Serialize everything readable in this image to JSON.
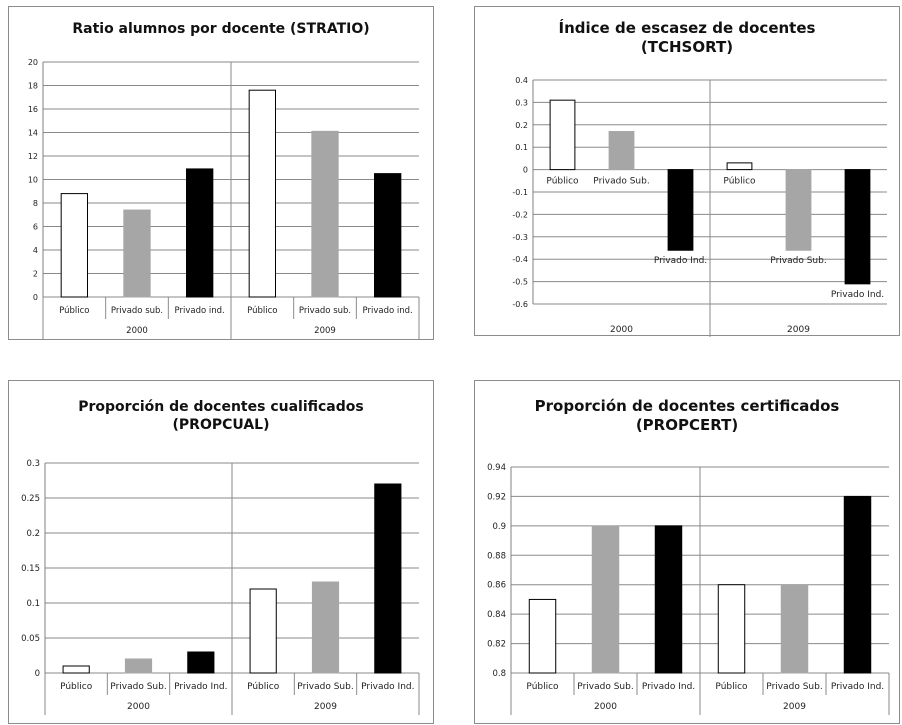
{
  "charts": [
    {
      "title_lines": [
        "Ratio alumnos por docente (STRATIO)"
      ],
      "chart_data": {
        "type": "bar",
        "title": "Ratio alumnos por docente (STRATIO)",
        "xlabel": "",
        "ylabel": "",
        "ylim": [
          0,
          20
        ],
        "yticks": [
          "0",
          "2",
          "4",
          "6",
          "8",
          "10",
          "12",
          "14",
          "16",
          "18",
          "20"
        ],
        "grid": true,
        "groups": [
          "2000",
          "2009"
        ],
        "categories": [
          "Público",
          "Privado sub.",
          "Privado ind.",
          "Público",
          "Privado sub.",
          "Privado ind."
        ],
        "values": [
          8.8,
          7.4,
          10.9,
          17.6,
          14.1,
          10.5
        ],
        "bar_colors": [
          "#ffffff",
          "#a6a6a6",
          "#000000",
          "#ffffff",
          "#a6a6a6",
          "#000000"
        ]
      }
    },
    {
      "title_lines": [
        "Índice de escasez de docentes",
        "(TCHSORT)"
      ],
      "chart_data": {
        "type": "bar",
        "title": "Índice de escasez de docentes (TCHSORT)",
        "xlabel": "",
        "ylabel": "",
        "ylim": [
          -0.6,
          0.4
        ],
        "yticks": [
          "-0.6",
          "-0.5",
          "-0.4",
          "-0.3",
          "-0.2",
          "-0.1",
          "0",
          "0.1",
          "0.2",
          "0.3",
          "0.4"
        ],
        "grid": true,
        "groups": [
          "2000",
          "2009"
        ],
        "categories": [
          "Público",
          "Privado Sub.",
          "Privado Ind.",
          "Público",
          "Privado Sub.",
          "Privado Ind."
        ],
        "values": [
          0.31,
          0.17,
          -0.36,
          0.03,
          -0.36,
          -0.51
        ],
        "bar_colors": [
          "#ffffff",
          "#a6a6a6",
          "#000000",
          "#ffffff",
          "#a6a6a6",
          "#000000"
        ]
      }
    },
    {
      "title_lines": [
        "Proporción de docentes cualificados",
        "(PROPCUAL)"
      ],
      "chart_data": {
        "type": "bar",
        "title": "Proporción de docentes cualificados (PROPCUAL)",
        "xlabel": "",
        "ylabel": "",
        "ylim": [
          0,
          0.3
        ],
        "yticks": [
          "0",
          "0.05",
          "0.1",
          "0.15",
          "0.2",
          "0.25",
          "0.3"
        ],
        "grid": true,
        "groups": [
          "2000",
          "2009"
        ],
        "categories": [
          "Público",
          "Privado Sub.",
          "Privado Ind.",
          "Público",
          "Privado Sub.",
          "Privado Ind."
        ],
        "values": [
          0.01,
          0.02,
          0.03,
          0.12,
          0.13,
          0.27
        ],
        "bar_colors": [
          "#ffffff",
          "#a6a6a6",
          "#000000",
          "#ffffff",
          "#a6a6a6",
          "#000000"
        ]
      }
    },
    {
      "title_lines": [
        "Proporción de docentes certificados",
        "(PROPCERT)"
      ],
      "chart_data": {
        "type": "bar",
        "title": "Proporción de docentes certificados (PROPCERT)",
        "xlabel": "",
        "ylabel": "",
        "ylim": [
          0.8,
          0.94
        ],
        "yticks": [
          "0.8",
          "0.82",
          "0.84",
          "0.86",
          "0.88",
          "0.9",
          "0.92",
          "0.94"
        ],
        "grid": true,
        "groups": [
          "2000",
          "2009"
        ],
        "categories": [
          "Público",
          "Privado Sub.",
          "Privado Ind.",
          "Público",
          "Privado Sub.",
          "Privado Ind."
        ],
        "values": [
          0.85,
          0.9,
          0.9,
          0.86,
          0.86,
          0.92
        ],
        "bar_colors": [
          "#ffffff",
          "#a6a6a6",
          "#000000",
          "#ffffff",
          "#a6a6a6",
          "#000000"
        ]
      }
    }
  ]
}
